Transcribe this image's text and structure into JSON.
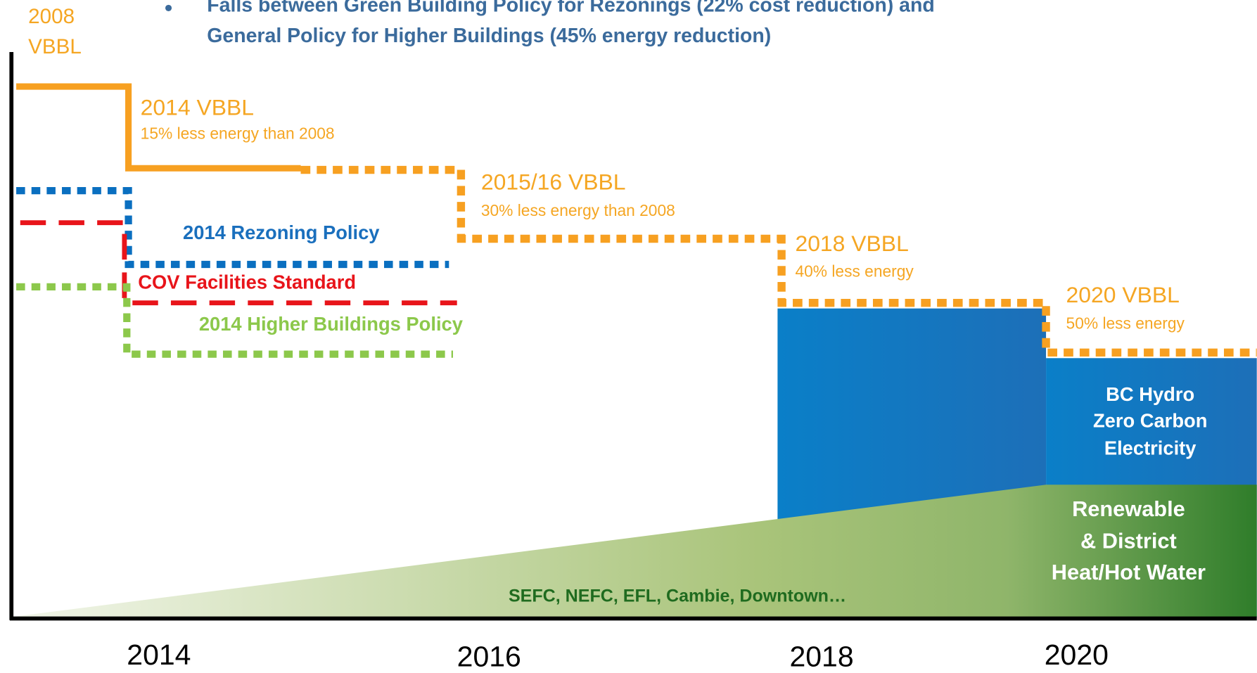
{
  "header": {
    "label": [
      "2008",
      "VBBL"
    ],
    "bullet": [
      "Falls between Green Building Policy for Rezonings (22% cost reduction) and",
      "General Policy for Higher Buildings (45% energy reduction)"
    ]
  },
  "steps": [
    {
      "title": "2014 VBBL",
      "note": "15% less energy than 2008"
    },
    {
      "title": "2015/16 VBBL",
      "note": "30% less energy than 2008"
    },
    {
      "title": "2018 VBBL",
      "note": "40% less energy"
    },
    {
      "title": "2020 VBBL",
      "note": "50% less energy"
    }
  ],
  "policies": [
    "2014 Rezoning Policy",
    "COV Facilities Standard",
    "2014 Higher Buildings Policy"
  ],
  "hydro": [
    "BC Hydro",
    "Zero Carbon",
    "Electricity"
  ],
  "renewable": [
    "Renewable",
    "& District",
    "Heat/Hot Water"
  ],
  "district": "SEFC, NEFC, EFL, Cambie, Downtown…",
  "years": [
    "2014",
    "2016",
    "2018",
    "2020"
  ]
}
